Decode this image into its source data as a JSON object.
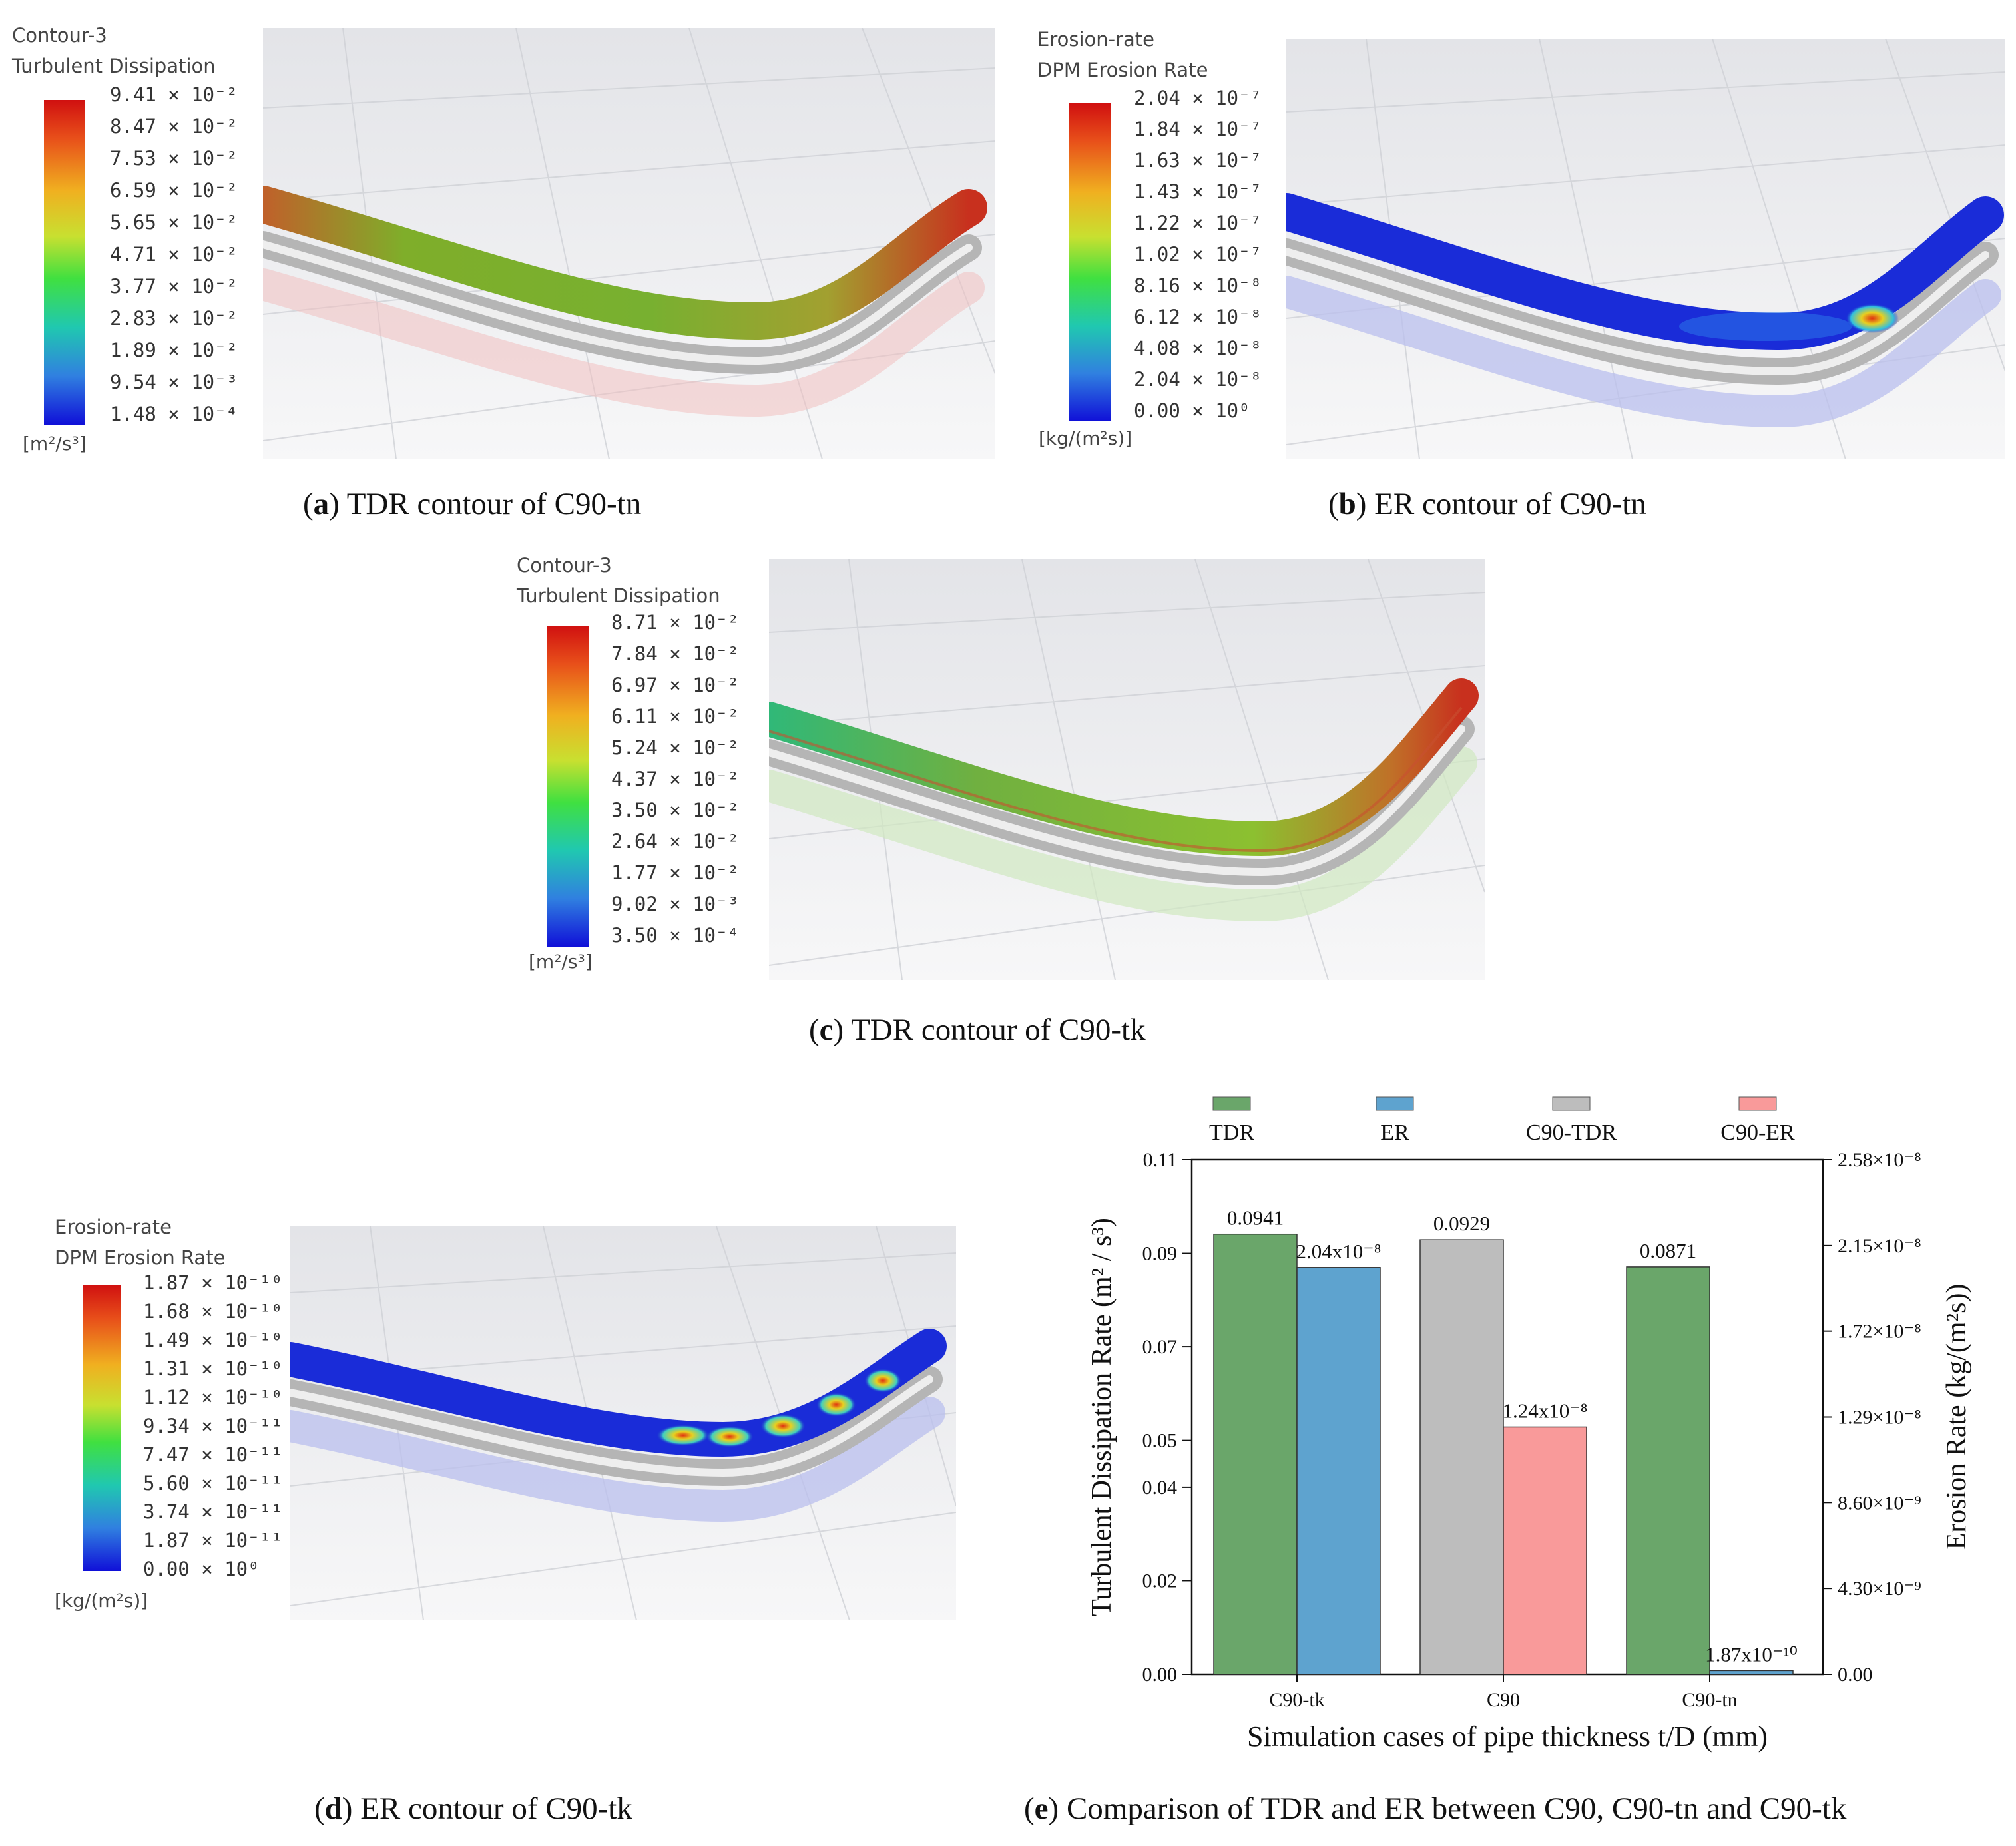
{
  "panel_a": {
    "legend_title_1": "Contour-3",
    "legend_title_2": "Turbulent Dissipation",
    "ticks": [
      "9.41 × 10⁻²",
      "8.47 × 10⁻²",
      "7.53 × 10⁻²",
      "6.59 × 10⁻²",
      "5.65 × 10⁻²",
      "4.71 × 10⁻²",
      "3.77 × 10⁻²",
      "2.83 × 10⁻²",
      "1.89 × 10⁻²",
      "9.54 × 10⁻³",
      "1.48 × 10⁻⁴"
    ],
    "unit": "[m²/s³]",
    "caption_letter": "a",
    "caption_text": " TDR contour of C90-tn"
  },
  "panel_b": {
    "legend_title_1": "Erosion-rate",
    "legend_title_2": "DPM Erosion Rate",
    "ticks": [
      "2.04 × 10⁻⁷",
      "1.84 × 10⁻⁷",
      "1.63 × 10⁻⁷",
      "1.43 × 10⁻⁷",
      "1.22 × 10⁻⁷",
      "1.02 × 10⁻⁷",
      "8.16 × 10⁻⁸",
      "6.12 × 10⁻⁸",
      "4.08 × 10⁻⁸",
      "2.04 × 10⁻⁸",
      "0.00 × 10⁰"
    ],
    "unit": "[kg/(m²s)]",
    "caption_letter": "b",
    "caption_text": " ER contour of C90-tn"
  },
  "panel_c": {
    "legend_title_1": "Contour-3",
    "legend_title_2": "Turbulent Dissipation",
    "ticks": [
      "8.71 × 10⁻²",
      "7.84 × 10⁻²",
      "6.97 × 10⁻²",
      "6.11 × 10⁻²",
      "5.24 × 10⁻²",
      "4.37 × 10⁻²",
      "3.50 × 10⁻²",
      "2.64 × 10⁻²",
      "1.77 × 10⁻²",
      "9.02 × 10⁻³",
      "3.50 × 10⁻⁴"
    ],
    "unit": "[m²/s³]",
    "caption_letter": "c",
    "caption_text": " TDR contour of C90-tk"
  },
  "panel_d": {
    "legend_title_1": "Erosion-rate",
    "legend_title_2": "DPM Erosion Rate",
    "ticks": [
      "1.87 × 10⁻¹⁰",
      "1.68 × 10⁻¹⁰",
      "1.49 × 10⁻¹⁰",
      "1.31 × 10⁻¹⁰",
      "1.12 × 10⁻¹⁰",
      "9.34 × 10⁻¹¹",
      "7.47 × 10⁻¹¹",
      "5.60 × 10⁻¹¹",
      "3.74 × 10⁻¹¹",
      "1.87 × 10⁻¹¹",
      "0.00 × 10⁰"
    ],
    "unit": "[kg/(m²s)]",
    "caption_letter": "d",
    "caption_text": " ER contour of C90-tk"
  },
  "panel_e": {
    "caption_letter": "e",
    "caption_text": " Comparison of TDR and ER between C90, C90-tn and C90-tk"
  },
  "chart_data": {
    "type": "bar",
    "categories": [
      "C90-tk",
      "C90",
      "C90-tn"
    ],
    "xlabel": "Simulation cases of pipe thickness t/D (mm)",
    "ylabel_left": "Turbulent Dissipation Rate (m² / s³)",
    "ylabel_right": "Erosion Rate (kg/(m²s))",
    "ylim_left": [
      0,
      0.11
    ],
    "ylim_right": [
      0,
      2.58e-08
    ],
    "left_ticks": [
      {
        "value": 0.0,
        "label": "0.00"
      },
      {
        "value": 0.02,
        "label": "0.02"
      },
      {
        "value": 0.04,
        "label": "0.04"
      },
      {
        "value": 0.05,
        "label": "0.05"
      },
      {
        "value": 0.07,
        "label": "0.07"
      },
      {
        "value": 0.09,
        "label": "0.09"
      },
      {
        "value": 0.11,
        "label": "0.11"
      }
    ],
    "right_ticks": [
      {
        "value": 0,
        "label": "0.00"
      },
      {
        "value": 4.3e-09,
        "label": "4.30×10⁻⁹"
      },
      {
        "value": 8.6e-09,
        "label": "8.60×10⁻⁹"
      },
      {
        "value": 1.29e-08,
        "label": "1.29×10⁻⁸"
      },
      {
        "value": 1.72e-08,
        "label": "1.72×10⁻⁸"
      },
      {
        "value": 2.15e-08,
        "label": "2.15×10⁻⁸"
      },
      {
        "value": 2.58e-08,
        "label": "2.58×10⁻⁸"
      }
    ],
    "legend": [
      {
        "name": "TDR",
        "color": "#6aa66a"
      },
      {
        "name": "ER",
        "color": "#5ea3cf"
      },
      {
        "name": "C90-TDR",
        "color": "#bdbdbd"
      },
      {
        "name": "C90-ER",
        "color": "#f99a9a"
      }
    ],
    "bars": [
      {
        "category": "C90-tk",
        "series": "TDR",
        "axis": "left",
        "value": 0.0941,
        "label": "0.0941",
        "color": "#6aa66a"
      },
      {
        "category": "C90-tk",
        "series": "ER",
        "axis": "right",
        "value": 2.04e-08,
        "label": "2.04x10⁻⁸",
        "color": "#5ea3cf"
      },
      {
        "category": "C90",
        "series": "C90-TDR",
        "axis": "left",
        "value": 0.0929,
        "label": "0.0929",
        "color": "#bdbdbd"
      },
      {
        "category": "C90",
        "series": "C90-ER",
        "axis": "right",
        "value": 1.24e-08,
        "label": "1.24x10⁻⁸",
        "color": "#f99a9a"
      },
      {
        "category": "C90-tn",
        "series": "TDR",
        "axis": "left",
        "value": 0.0871,
        "label": "0.0871",
        "color": "#6aa66a"
      },
      {
        "category": "C90-tn",
        "series": "ER",
        "axis": "right",
        "value": 1.87e-10,
        "label": "1.87x10⁻¹⁰",
        "color": "#5ea3cf"
      }
    ]
  }
}
